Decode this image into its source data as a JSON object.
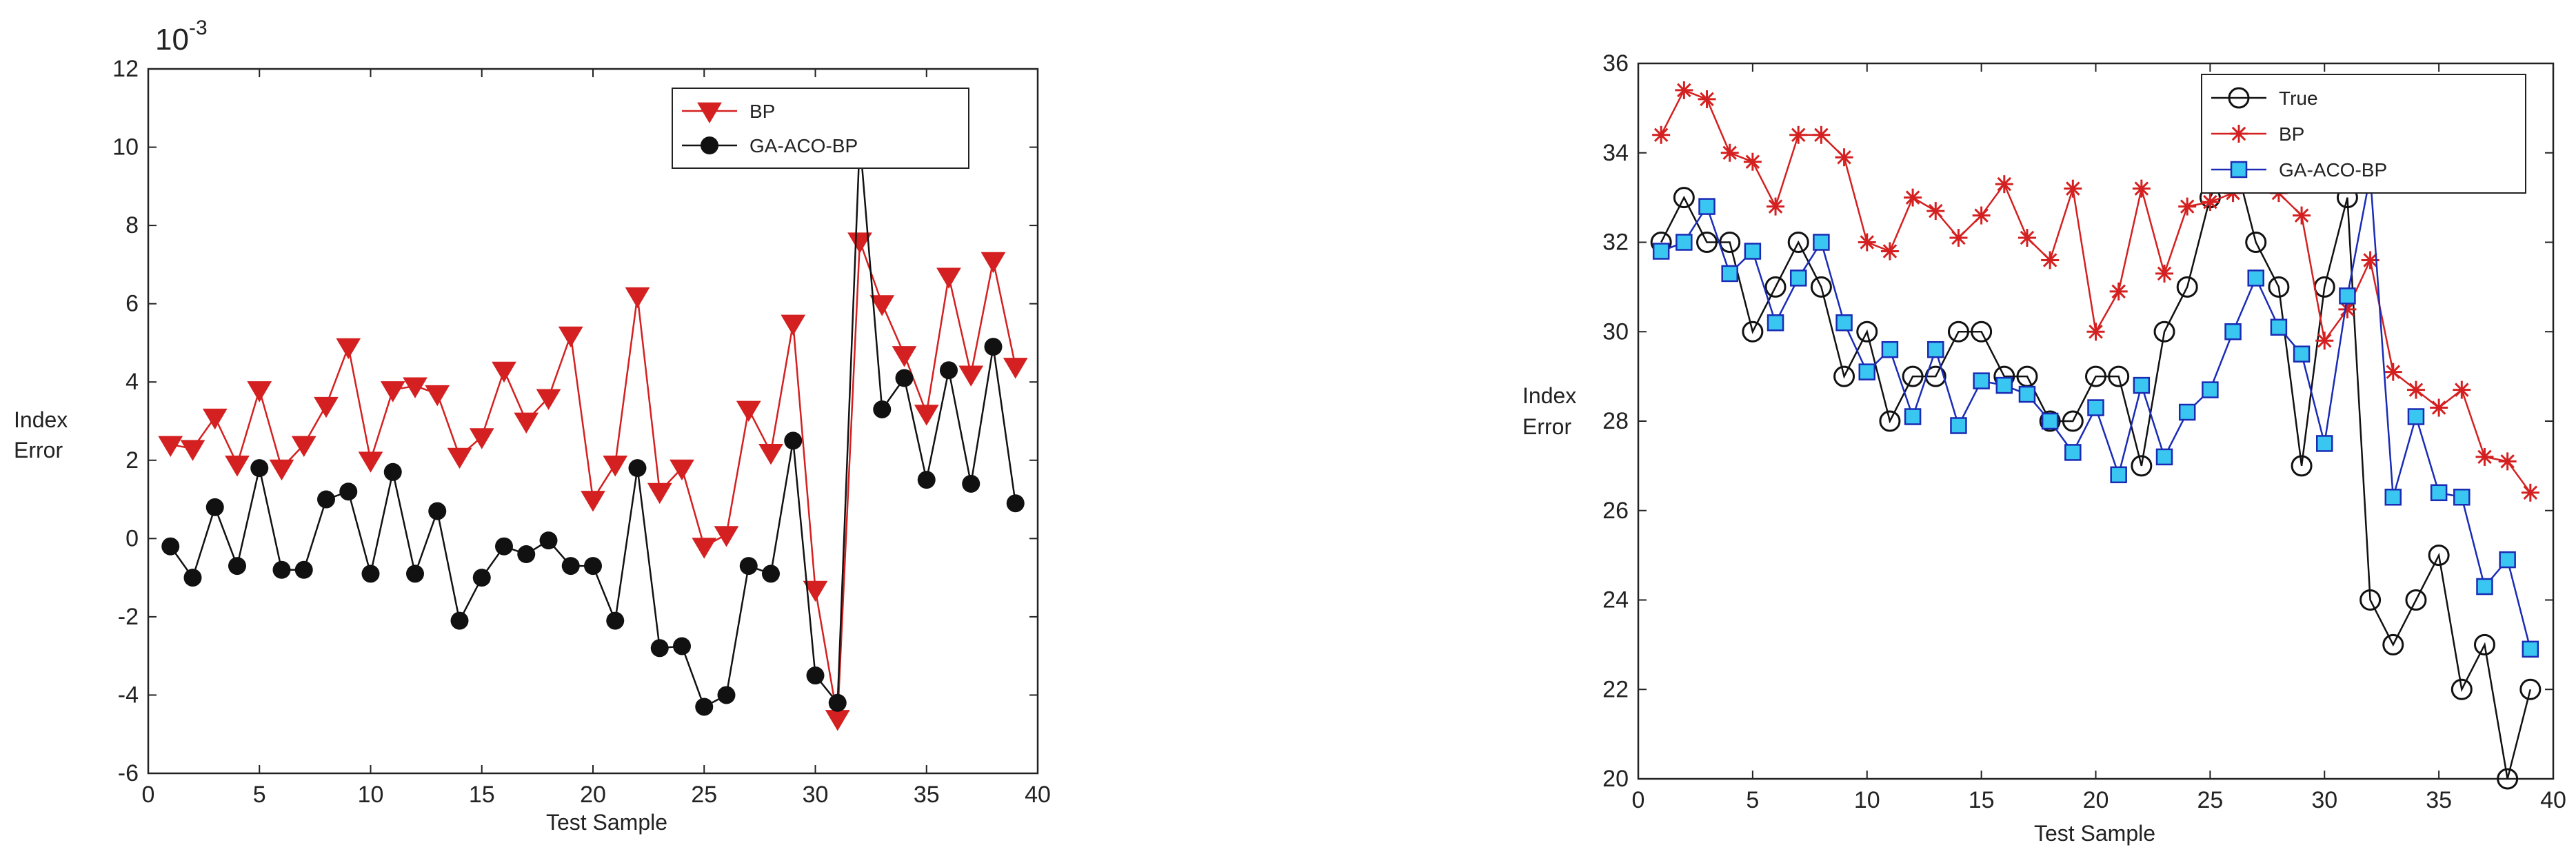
{
  "chart_data": [
    {
      "type": "line",
      "title": "",
      "xlabel": "Test Sample",
      "ylabel": "Index Error",
      "scale_label": "10^-3",
      "xlim": [
        0,
        40
      ],
      "ylim": [
        -6,
        12
      ],
      "xticks": [
        0,
        5,
        10,
        15,
        20,
        25,
        30,
        35,
        40
      ],
      "yticks": [
        -6,
        -4,
        -2,
        0,
        2,
        4,
        6,
        8,
        10,
        12
      ],
      "grid": false,
      "legend_position": "top-right",
      "x": [
        1,
        2,
        3,
        4,
        5,
        6,
        7,
        8,
        9,
        10,
        11,
        12,
        13,
        14,
        15,
        16,
        17,
        18,
        19,
        20,
        21,
        22,
        23,
        24,
        25,
        26,
        27,
        28,
        29,
        30,
        31,
        32,
        33,
        34,
        35,
        36,
        37,
        38,
        39
      ],
      "series": [
        {
          "name": "BP",
          "color": "#d42020",
          "marker": "triangle-down",
          "values": [
            2.4,
            2.3,
            3.1,
            1.9,
            3.8,
            1.8,
            2.4,
            3.4,
            4.9,
            2.0,
            3.8,
            3.9,
            3.7,
            2.1,
            2.6,
            4.3,
            3.0,
            3.6,
            5.2,
            1.0,
            1.9,
            6.2,
            1.2,
            1.8,
            -0.2,
            0.1,
            3.3,
            2.2,
            5.5,
            -1.3,
            -4.6,
            7.6,
            6.0,
            4.7,
            3.2,
            6.7,
            4.2,
            7.1,
            4.4
          ]
        },
        {
          "name": "GA-ACO-BP",
          "color": "#111111",
          "marker": "circle",
          "values": [
            -0.2,
            -1.0,
            0.8,
            -0.7,
            1.8,
            -0.8,
            -0.8,
            1.0,
            1.2,
            -0.9,
            1.7,
            -0.9,
            0.7,
            -2.1,
            -1.0,
            -0.2,
            -0.4,
            -0.05,
            -0.7,
            -0.7,
            -2.1,
            1.8,
            -2.8,
            -2.75,
            -4.3,
            -4.0,
            -0.7,
            -0.9,
            2.5,
            -3.5,
            -4.2,
            10.2,
            3.3,
            4.1,
            1.5,
            4.3,
            1.4,
            4.9,
            0.9
          ]
        }
      ]
    },
    {
      "type": "line",
      "title": "",
      "xlabel": "Test Sample",
      "ylabel": "Index Error",
      "xlim": [
        0,
        40
      ],
      "ylim": [
        20,
        36
      ],
      "xticks": [
        0,
        5,
        10,
        15,
        20,
        25,
        30,
        35,
        40
      ],
      "yticks": [
        20,
        22,
        24,
        26,
        28,
        30,
        32,
        34,
        36
      ],
      "grid": false,
      "legend_position": "top-right",
      "x": [
        1,
        2,
        3,
        4,
        5,
        6,
        7,
        8,
        9,
        10,
        11,
        12,
        13,
        14,
        15,
        16,
        17,
        18,
        19,
        20,
        21,
        22,
        23,
        24,
        25,
        26,
        27,
        28,
        29,
        30,
        31,
        32,
        33,
        34,
        35,
        36,
        37,
        38,
        39
      ],
      "series": [
        {
          "name": "True",
          "color": "#111111",
          "marker": "open-circle",
          "values": [
            32,
            33,
            32,
            32,
            30,
            31,
            32,
            31,
            29,
            30,
            28,
            29,
            29,
            30,
            30,
            29,
            29,
            28,
            28,
            29,
            29,
            27,
            30,
            31,
            33,
            34,
            32,
            31,
            27,
            31,
            33,
            24,
            23,
            24,
            25,
            22,
            23,
            20,
            22
          ]
        },
        {
          "name": "BP",
          "color": "#d42020",
          "marker": "star",
          "values": [
            34.4,
            35.4,
            35.2,
            34.0,
            33.8,
            32.8,
            34.4,
            34.4,
            33.9,
            32.0,
            31.8,
            33.0,
            32.7,
            32.1,
            32.6,
            33.3,
            32.1,
            31.6,
            33.2,
            30.0,
            30.9,
            33.2,
            31.3,
            32.8,
            32.9,
            33.1,
            33.3,
            33.1,
            32.6,
            29.8,
            30.5,
            31.6,
            29.1,
            28.7,
            28.3,
            28.7,
            27.2,
            27.1,
            26.4
          ]
        },
        {
          "name": "GA-ACO-BP",
          "color": "#1a2bb5",
          "marker_fill": "#39c6f0",
          "marker": "square",
          "values": [
            31.8,
            32.0,
            32.8,
            31.3,
            31.8,
            30.2,
            31.2,
            32.0,
            30.2,
            29.1,
            29.6,
            28.1,
            29.6,
            27.9,
            28.9,
            28.8,
            28.6,
            28.0,
            27.3,
            28.3,
            26.8,
            28.8,
            27.2,
            28.2,
            28.7,
            30.0,
            31.2,
            30.1,
            29.5,
            27.5,
            30.8,
            33.5,
            26.3,
            28.1,
            26.4,
            26.3,
            24.3,
            24.9,
            22.9
          ]
        }
      ]
    }
  ]
}
